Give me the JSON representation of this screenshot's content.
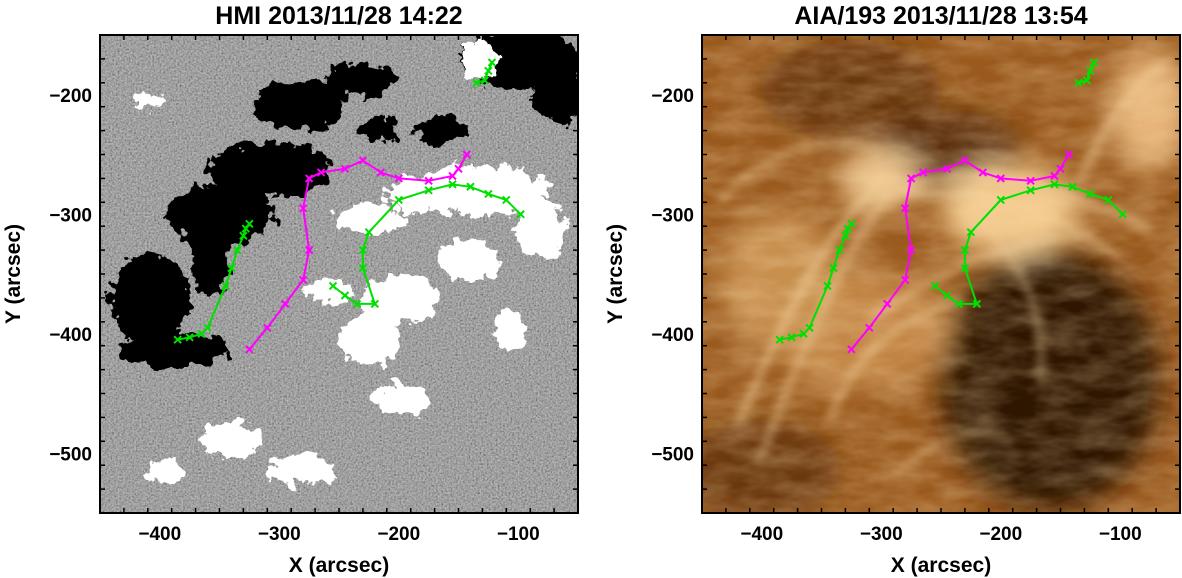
{
  "panels": [
    {
      "id": "hmi",
      "title": "HMI 2013/11/28 14:22",
      "image_kind": "magnetogram (black/white/gray)",
      "xlabel": "X (arcsec)",
      "ylabel": "Y (arcsec)",
      "xlim": [
        -450,
        -50
      ],
      "ylim": [
        -550,
        -150
      ],
      "xticks": [
        -400,
        -300,
        -200,
        -100
      ],
      "yticks": [
        -500,
        -400,
        -300,
        -200
      ],
      "colors": {
        "bg": "#7a7a7a",
        "light": "#b5b5b5",
        "dark": "#4b4b4b",
        "positive": "#ffffff",
        "negative": "#000000"
      }
    },
    {
      "id": "aia",
      "title": "AIA/193 2013/11/28 13:54",
      "image_kind": "EUV 193 coronal image (brown)",
      "xlabel": "X (arcsec)",
      "ylabel": "Y (arcsec)",
      "xlim": [
        -450,
        -50
      ],
      "ylim": [
        -550,
        -150
      ],
      "xticks": [
        -400,
        -300,
        -200,
        -100
      ],
      "yticks": [
        -500,
        -400,
        -300,
        -200
      ],
      "colors": {
        "base": "#9a5a1e",
        "bright": "#f3c98c",
        "dark": "#2e1405",
        "mid": "#c28545"
      }
    }
  ],
  "chart_data": {
    "type": "line",
    "xlim": [
      -450,
      -50
    ],
    "ylim": [
      -550,
      -150
    ],
    "marker": "x",
    "series": [
      {
        "color": "#ff00ff",
        "x": [
          -325,
          -310,
          -295,
          -280,
          -275,
          -280,
          -275,
          -265,
          -245,
          -230,
          -215,
          -200,
          -175,
          -155,
          -150,
          -143
        ],
        "y": [
          -413,
          -395,
          -375,
          -355,
          -330,
          -295,
          -270,
          -265,
          -262,
          -255,
          -265,
          -270,
          -272,
          -268,
          -262,
          -250
        ]
      },
      {
        "color": "#00e000",
        "x": [
          -385,
          -375,
          -365,
          -360,
          -345,
          -340,
          -335,
          -330,
          -328,
          -325
        ],
        "y": [
          -405,
          -403,
          -400,
          -395,
          -360,
          -345,
          -330,
          -318,
          -312,
          -308
        ]
      },
      {
        "color": "#00e000",
        "x": [
          -255,
          -245,
          -235,
          -220,
          -230,
          -230,
          -225,
          -200,
          -175,
          -155,
          -140,
          -125,
          -110,
          -98
        ],
        "y": [
          -360,
          -368,
          -375,
          -375,
          -345,
          -330,
          -315,
          -288,
          -280,
          -275,
          -277,
          -283,
          -288,
          -300
        ]
      },
      {
        "color": "#00e000",
        "x": [
          -135,
          -128,
          -125,
          -122
        ],
        "y": [
          -190,
          -188,
          -180,
          -173
        ]
      }
    ]
  }
}
